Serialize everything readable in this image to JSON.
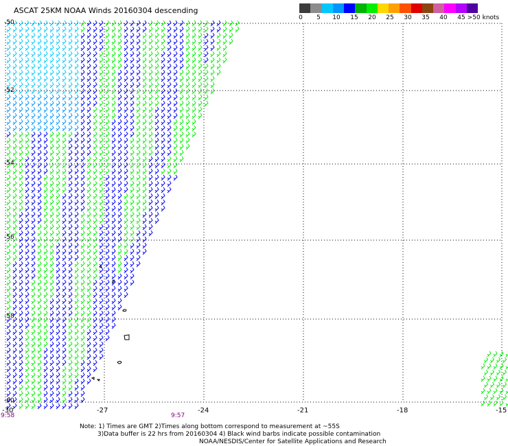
{
  "title": "ASCAT 25KM NOAA Winds 20160304 descending",
  "legend": {
    "colors": [
      "#3c3c3c",
      "#8c8c8c",
      "#00c8ff",
      "#0096ff",
      "#0000ff",
      "#00b400",
      "#00f000",
      "#ffd700",
      "#ffa000",
      "#ff5000",
      "#e00000",
      "#8b4513",
      "#d060a0",
      "#ff00ff",
      "#b400ff",
      "#5000a0"
    ],
    "labels": [
      "0",
      "5",
      "10",
      "15",
      "20",
      "25",
      "30",
      "35",
      "40",
      "45",
      ">50 knots"
    ]
  },
  "axes": {
    "lon_labels": [
      "-30",
      "-27",
      "-24",
      "-21",
      "-18",
      "-15"
    ],
    "lat_labels": [
      "-50",
      "-52",
      "-54",
      "-56",
      "-58",
      "-60"
    ]
  },
  "times": [
    "9:58",
    "9:57"
  ],
  "notes": [
    "Note: 1) Times are GMT 2)Times along bottom correspond to measurement at ~55S",
    "3)Data buffer is 22 hrs from 20160304 4) Black wind barbs indicate possible contamination",
    "NOAA/NESDIS/Center for Satellite Applications and Research"
  ]
}
